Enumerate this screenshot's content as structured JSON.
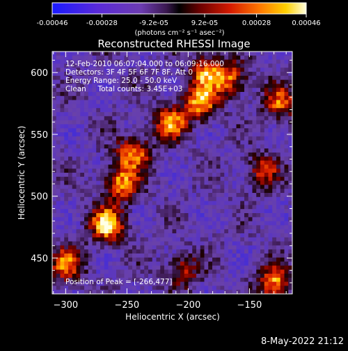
{
  "colorbar": {
    "tick_labels": [
      "-0.00046",
      "-0.00028",
      "-9.2e-05",
      "9.2e-05",
      "0.00028",
      "0.00046"
    ],
    "units_label": "(photons cm⁻² s⁻¹ asec⁻²)",
    "range": [
      -0.00046,
      0.00046
    ]
  },
  "chart_data": {
    "type": "heatmap",
    "title": "Reconstructed RHESSI Image",
    "xlabel": "Heliocentric X (arcsec)",
    "ylabel": "Heliocentric Y (arcsec)",
    "xlim": [
      -311,
      -115
    ],
    "ylim": [
      421,
      617
    ],
    "x_ticks": [
      -300,
      -250,
      -200,
      -150
    ],
    "y_ticks": [
      450,
      500,
      550,
      600
    ],
    "grid": false,
    "colormap": "RHESSI blue-purple to red-yellow-white",
    "annotations": [
      "12-Feb-2010 06:07:04.000 to 06:09:16.000",
      "Detectors: 3F 4F 5F 6F 7F 8F, Att 0",
      "Energy Range: 25.0 - 50.0 keV",
      "Clean     Total counts: 3.45E+03"
    ],
    "peak_label": "Position of Peak = [-266,477]",
    "peak_position": [
      -266,
      477
    ],
    "bright_sources": [
      {
        "x": -266,
        "y": 477,
        "intensity": 1.0
      },
      {
        "x": -255,
        "y": 510,
        "intensity": 0.85
      },
      {
        "x": -245,
        "y": 535,
        "intensity": 0.8
      },
      {
        "x": -215,
        "y": 560,
        "intensity": 0.8
      },
      {
        "x": -190,
        "y": 575,
        "intensity": 0.85
      },
      {
        "x": -185,
        "y": 600,
        "intensity": 0.75
      },
      {
        "x": -165,
        "y": 595,
        "intensity": 0.7
      },
      {
        "x": -300,
        "y": 445,
        "intensity": 0.75
      },
      {
        "x": -130,
        "y": 430,
        "intensity": 0.85
      },
      {
        "x": -140,
        "y": 520,
        "intensity": 0.6
      },
      {
        "x": -125,
        "y": 575,
        "intensity": 0.7
      },
      {
        "x": -205,
        "y": 440,
        "intensity": 0.55
      }
    ]
  },
  "footer": {
    "date": "8-May-2022 21:12"
  }
}
